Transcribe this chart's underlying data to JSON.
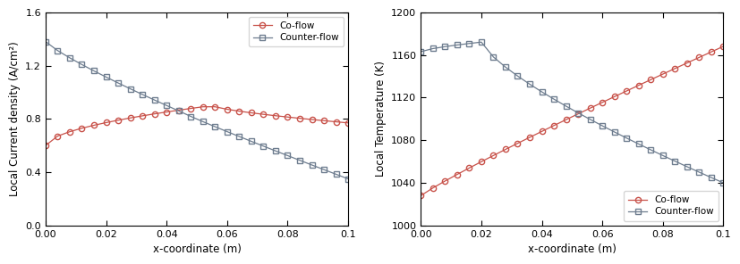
{
  "left_chart": {
    "xlabel": "x-coordinate (m)",
    "ylabel": "Local Current density (A/cm²)",
    "xlim": [
      0.0,
      0.1
    ],
    "ylim": [
      0.0,
      1.6
    ],
    "yticks": [
      0.0,
      0.4,
      0.8,
      1.2,
      1.6
    ],
    "xticks": [
      0.0,
      0.02,
      0.04,
      0.06,
      0.08,
      0.1
    ],
    "coflow_color": "#c8524a",
    "counterflow_color": "#6e7d8f",
    "legend_loc": "upper right"
  },
  "right_chart": {
    "xlabel": "x-coordinate (m)",
    "ylabel": "Local Temperature (K)",
    "xlim": [
      0.0,
      0.1
    ],
    "ylim": [
      1000,
      1200
    ],
    "yticks": [
      1000,
      1040,
      1080,
      1120,
      1160,
      1200
    ],
    "xticks": [
      0.0,
      0.02,
      0.04,
      0.06,
      0.08,
      0.1
    ],
    "coflow_color": "#c8524a",
    "counterflow_color": "#6e7d8f",
    "legend_loc": "lower right"
  },
  "bg_color": "#ffffff"
}
